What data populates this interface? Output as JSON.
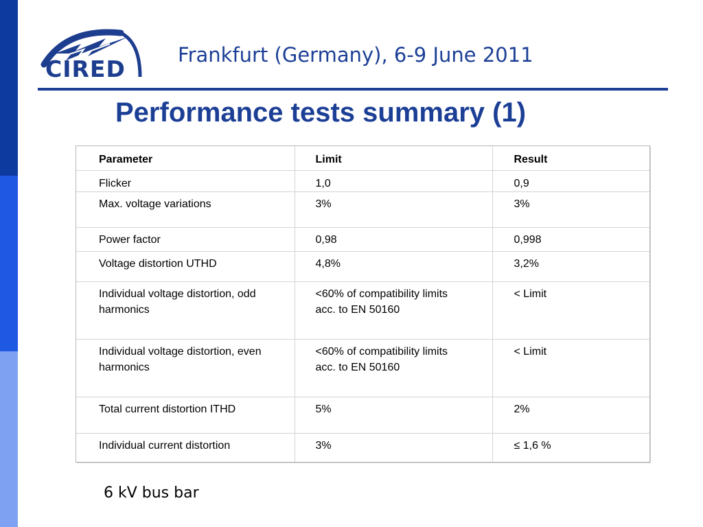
{
  "logo": {
    "text": "CIRED",
    "icon": "cired-logo"
  },
  "header": {
    "conference": "Frankfurt (Germany), 6-9 June 2011"
  },
  "slide": {
    "title": "Performance tests summary (1)"
  },
  "table": {
    "columns": [
      "Parameter",
      "Limit",
      "Result"
    ],
    "rows": [
      {
        "parameter": "Flicker",
        "limit": "1,0",
        "result": "0,9"
      },
      {
        "parameter": "Max. voltage variations",
        "limit": "3%",
        "result": "3%"
      },
      {
        "parameter": "Power factor",
        "limit": "0,98",
        "result": "0,998"
      },
      {
        "parameter": "Voltage distortion UTHD",
        "limit": "4,8%",
        "result": "3,2%"
      },
      {
        "parameter": "Individual voltage distortion, odd harmonics",
        "limit": "<60% of  compatibility limits  acc. to EN 50160",
        "result": "<  Limit"
      },
      {
        "parameter": "Individual voltage distortion, even harmonics",
        "limit": "<60% of  compatibility limits  acc. to EN 50160",
        "result": "< Limit"
      },
      {
        "parameter": "Total current distortion ITHD",
        "limit": "5%",
        "result": "2%"
      },
      {
        "parameter": "Individual current distortion",
        "limit": "3%",
        "result": "≤ 1,6 %"
      }
    ]
  },
  "footer": {
    "note": "6 kV bus bar"
  },
  "colors": {
    "brand": "#1c3f96",
    "strip_dark": "#0d3a9e",
    "strip_mid": "#1f58e3",
    "strip_light": "#7ea1f2"
  }
}
